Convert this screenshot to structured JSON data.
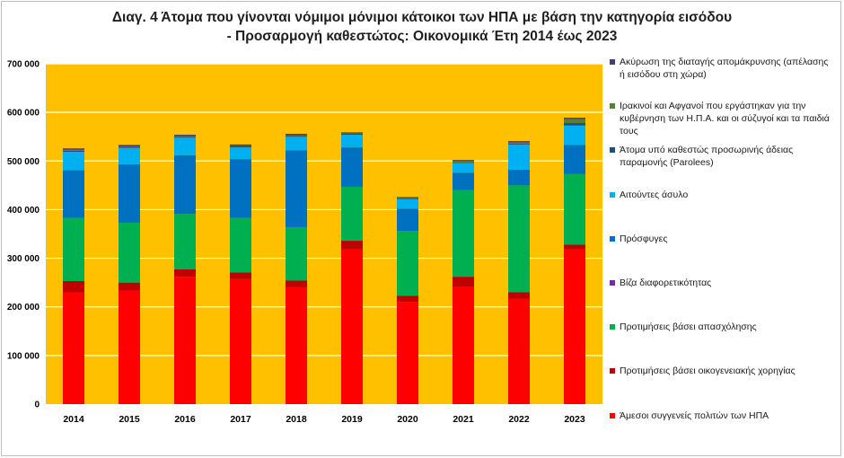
{
  "title": {
    "line1": "Διαγ. 4     Άτομα που γίνονται νόμιμοι μόνιμοι κάτοικοι των ΗΠΑ με βάση την κατηγορία εισόδου",
    "line2": "- Προσαρμογή καθεστώτος: Οικονομικά Έτη 2014 έως 2023"
  },
  "colors": {
    "plot_background": "#FFC000",
    "gridline": "#ffffff",
    "axis_text": "#000000"
  },
  "chart_data": {
    "type": "bar",
    "stacked": true,
    "title": "Διαγ. 4     Άτομα που γίνονται νόμιμοι μόνιμοι κάτοικοι των ΗΠΑ με βάση την κατηγορία εισόδου - Προσαρμογή καθεστώτος: Οικονομικά Έτη 2014 έως 2023",
    "xlabel": "",
    "ylabel": "",
    "ylim": [
      0,
      700000
    ],
    "yticks": [
      0,
      100000,
      200000,
      300000,
      400000,
      500000,
      600000,
      700000
    ],
    "ytick_labels": [
      "0",
      "100 000",
      "200 000",
      "300 000",
      "400 000",
      "500 000",
      "600 000",
      "700 000"
    ],
    "grid": true,
    "legend_position": "right",
    "categories": [
      "2014",
      "2015",
      "2016",
      "2017",
      "2018",
      "2019",
      "2020",
      "2021",
      "2022",
      "2023"
    ],
    "series": [
      {
        "name": "Άμεσοι συγγενείς πολιτών των ΗΠΑ",
        "color": "#FF0000",
        "values": [
          230000,
          233000,
          262000,
          257000,
          241000,
          318000,
          210000,
          242000,
          217000,
          318000
        ]
      },
      {
        "name": "Προτιμήσεις βάσει οικογενειακής χορηγίας",
        "color": "#C00000",
        "values": [
          23000,
          17000,
          15000,
          14000,
          13000,
          18000,
          13000,
          20000,
          13000,
          10000
        ]
      },
      {
        "name": "Προτιμήσεις βάσει απασχόλησης",
        "color": "#00B050",
        "values": [
          130000,
          123000,
          114000,
          112000,
          110000,
          111000,
          133000,
          178000,
          220000,
          145000
        ]
      },
      {
        "name": "Βίζα διαφορετικότητας",
        "color": "#7030A0",
        "values": [
          0,
          0,
          0,
          0,
          0,
          0,
          0,
          0,
          0,
          0
        ]
      },
      {
        "name": "Πρόσφυγες",
        "color": "#0070C0",
        "values": [
          98000,
          120000,
          121000,
          121000,
          158000,
          81000,
          46000,
          36000,
          32000,
          60000
        ]
      },
      {
        "name": "Αιτούντες άσυλο",
        "color": "#00B0F0",
        "values": [
          38000,
          34000,
          36000,
          24000,
          28000,
          26000,
          20000,
          20000,
          52000,
          40000
        ]
      },
      {
        "name": "Άτομα υπό καθεστώς προσωρινής άδειας παραμονής (Parolees)",
        "color": "#1F4E79",
        "values": [
          2000,
          2000,
          2000,
          2000,
          2000,
          2000,
          1000,
          1000,
          2000,
          5000
        ]
      },
      {
        "name": "Ιρακινοί και Αφγανοί που εργάστηκαν για την κυβέρνηση των Η.Π.Α. και οι σύζυγοί και τα παιδιά τους",
        "color": "#548235",
        "values": [
          2000,
          1000,
          1000,
          1000,
          1000,
          1000,
          1000,
          2000,
          2000,
          8000
        ]
      },
      {
        "name": "Ακύρωση της διαταγής απομάκρυνσης  (απέλασης ή εισόδου στη χώρα)",
        "color": "#3F3F80",
        "values": [
          3000,
          3000,
          3000,
          3000,
          3000,
          2000,
          2000,
          3000,
          3000,
          3000
        ]
      }
    ]
  },
  "legend": [
    {
      "label": "Ακύρωση της διαταγής απομάκρυνσης  (απέλασης ή εισόδου στη χώρα)",
      "color": "#3F3F80"
    },
    {
      "label": "Ιρακινοί και Αφγανοί που εργάστηκαν για την κυβέρνηση των Η.Π.Α. και οι σύζυγοί και τα παιδιά τους",
      "color": "#548235"
    },
    {
      "label": "Άτομα υπό καθεστώς προσωρινής άδειας παραμονής (Parolees)",
      "color": "#1F4E79"
    },
    {
      "label": "Αιτούντες άσυλο",
      "color": "#00B0F0"
    },
    {
      "label": "Πρόσφυγες",
      "color": "#0070C0"
    },
    {
      "label": "Βίζα διαφορετικότητας",
      "color": "#7030A0"
    },
    {
      "label": "Προτιμήσεις βάσει απασχόλησης",
      "color": "#00B050"
    },
    {
      "label": "Προτιμήσεις βάσει οικογενειακής χορηγίας",
      "color": "#C00000"
    },
    {
      "label": "Άμεσοι συγγενείς πολιτών των ΗΠΑ",
      "color": "#FF0000"
    }
  ]
}
